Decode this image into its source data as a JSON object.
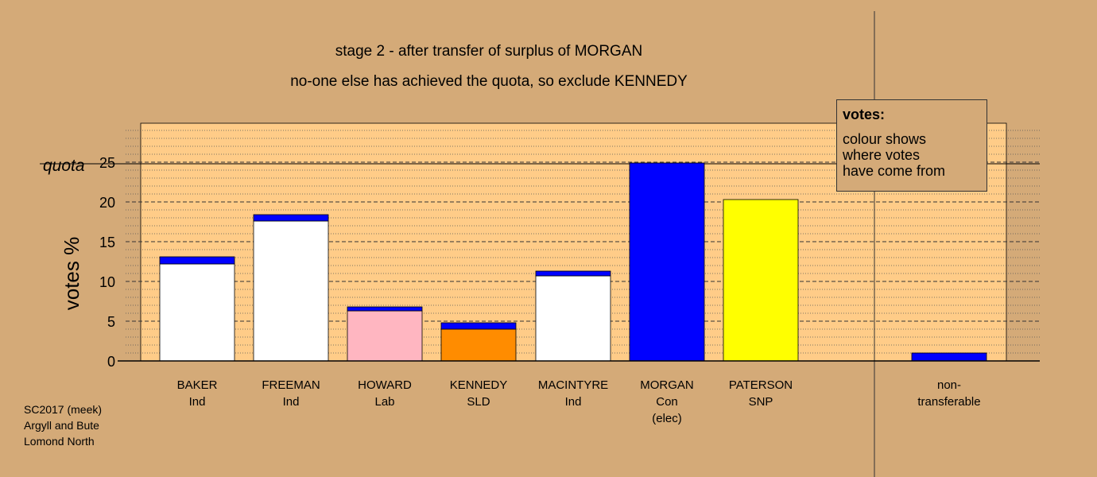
{
  "chart_data": {
    "type": "bar",
    "title": "stage 2 - after transfer of surplus of MORGAN",
    "subtitle": "no-one else has achieved the quota, so exclude KENNEDY",
    "ylabel": "votes %",
    "ylim": [
      0,
      30
    ],
    "yticks": [
      "0",
      "5",
      "10",
      "15",
      "20",
      "25"
    ],
    "quota": {
      "label": "quota",
      "value": 25
    },
    "categories": [
      {
        "lines": [
          "BAKER",
          "Ind"
        ]
      },
      {
        "lines": [
          "FREEMAN",
          "Ind"
        ]
      },
      {
        "lines": [
          "HOWARD",
          "Lab"
        ]
      },
      {
        "lines": [
          "KENNEDY",
          "SLD"
        ]
      },
      {
        "lines": [
          "MACINTYRE",
          "Ind"
        ]
      },
      {
        "lines": [
          "MORGAN",
          "Con",
          "(elec)"
        ]
      },
      {
        "lines": [
          "PATERSON",
          "SNP"
        ]
      },
      {
        "lines": [
          "non-",
          "transferable"
        ]
      }
    ],
    "bars": [
      {
        "segments": [
          {
            "value": 12.2,
            "color": "#ffffff"
          },
          {
            "value": 0.9,
            "color": "#0000ff"
          }
        ]
      },
      {
        "segments": [
          {
            "value": 17.6,
            "color": "#ffffff"
          },
          {
            "value": 0.8,
            "color": "#0000ff"
          }
        ]
      },
      {
        "segments": [
          {
            "value": 6.3,
            "color": "#ffb6c1"
          },
          {
            "value": 0.5,
            "color": "#0000ff"
          }
        ]
      },
      {
        "segments": [
          {
            "value": 4.0,
            "color": "#ff8c00"
          },
          {
            "value": 0.8,
            "color": "#0000ff"
          }
        ]
      },
      {
        "segments": [
          {
            "value": 10.7,
            "color": "#ffffff"
          },
          {
            "value": 0.6,
            "color": "#0000ff"
          }
        ]
      },
      {
        "segments": [
          {
            "value": 24.9,
            "color": "#0000ff"
          }
        ]
      },
      {
        "segments": [
          {
            "value": 20.3,
            "color": "#ffff00"
          }
        ]
      },
      {
        "segments": [
          {
            "value": 1.0,
            "color": "#0000ff"
          }
        ]
      }
    ],
    "grid": true,
    "legend": {
      "title": "votes:",
      "lines": [
        "colour shows",
        "where votes",
        "have come from"
      ]
    }
  },
  "footer": [
    "SC2017 (meek)",
    "Argyll and Bute",
    "Lomond North"
  ],
  "colors": {
    "background": "#d4aa78",
    "panel": "#ffcc88"
  }
}
